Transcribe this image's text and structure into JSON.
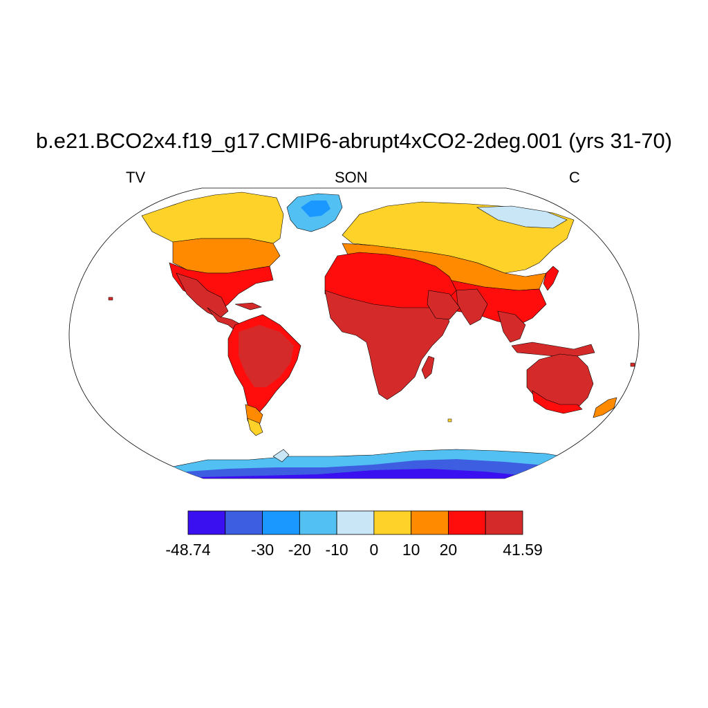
{
  "title": "b.e21.BCO2x4.f19_g17.CMIP6-abrupt4xCO2-2deg.001 (yrs 31-70)",
  "left_string": "TV",
  "center_string": "SON",
  "right_string": "C",
  "colorbar": {
    "colors": [
      "#3a0ff0",
      "#3d5ee0",
      "#1a98ff",
      "#52c0f2",
      "#c8e6f6",
      "#ffd22a",
      "#ff8a00",
      "#ff0d0d",
      "#d42a2a"
    ],
    "labels": [
      "-48.74",
      "-30",
      "-20",
      "-10",
      "0",
      "10",
      "20",
      "41.59"
    ]
  },
  "projection": "robinson"
}
